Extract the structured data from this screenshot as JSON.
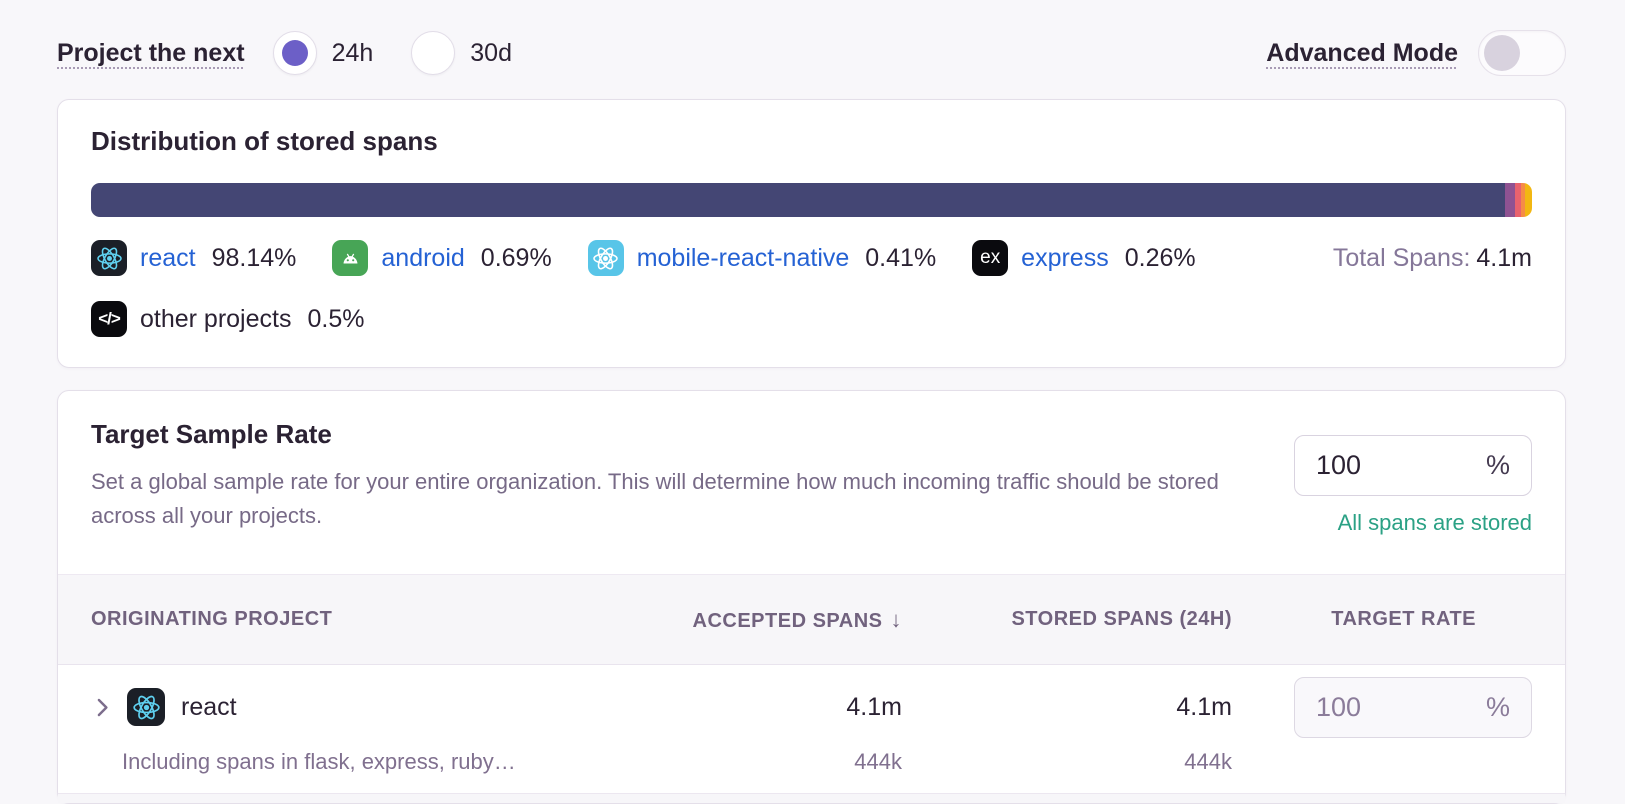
{
  "colors": {
    "accent": "#6C5FC7",
    "link": "#2562d4",
    "success": "#2BA185"
  },
  "controls": {
    "project_next_label": "Project the next",
    "period_options": [
      {
        "label": "24h",
        "selected": true
      },
      {
        "label": "30d",
        "selected": false
      }
    ],
    "advanced_mode_label": "Advanced Mode",
    "advanced_mode_enabled": false
  },
  "distribution_card": {
    "title": "Distribution of stored spans",
    "total_spans_label": "Total Spans:",
    "total_spans_value": "4.1m",
    "segments": [
      {
        "project": "react",
        "percent": "98.14%",
        "value": 98.14,
        "color": "#444674",
        "icon": "react-icon"
      },
      {
        "project": "android",
        "percent": "0.69%",
        "value": 0.69,
        "color": "#8f5292",
        "icon": "android-icon"
      },
      {
        "project": "mobile-react-native",
        "percent": "0.41%",
        "value": 0.41,
        "color": "#e9626e",
        "icon": "react-native-icon"
      },
      {
        "project": "express",
        "percent": "0.26%",
        "value": 0.26,
        "color": "#f58c46",
        "icon": "express-icon"
      },
      {
        "project": "other projects",
        "percent": "0.5%",
        "value": 0.5,
        "color": "#f2b712",
        "icon": "code-icon"
      }
    ]
  },
  "chart_data": {
    "type": "bar",
    "title": "Distribution of stored spans",
    "categories": [
      "react",
      "android",
      "mobile-react-native",
      "express",
      "other projects"
    ],
    "values": [
      98.14,
      0.69,
      0.41,
      0.26,
      0.5
    ],
    "unit": "%",
    "total_label": "Total Spans: 4.1m"
  },
  "sample_rate_card": {
    "title": "Target Sample Rate",
    "description": "Set a global sample rate for your entire organization. This will determine how much incoming traffic should be stored across all your projects.",
    "rate_input": {
      "value": "100",
      "unit": "%"
    },
    "status_text": "All spans are stored",
    "table": {
      "col_project": "ORIGINATING PROJECT",
      "col_accepted": "ACCEPTED SPANS",
      "sort_indicator": "↓",
      "col_stored": "STORED SPANS (24H)",
      "col_target": "TARGET RATE",
      "rows": [
        {
          "project": "react",
          "accepted": "4.1m",
          "stored": "4.1m",
          "target_rate": {
            "value": "100",
            "unit": "%"
          },
          "sub_label": "Including spans in flask, express, ruby…",
          "sub_accepted": "444k",
          "sub_stored": "444k"
        }
      ]
    }
  }
}
